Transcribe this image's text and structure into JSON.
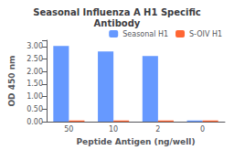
{
  "chart_data": {
    "type": "bar",
    "title": "Seasonal Influenza A H1 Specific\nAntibody",
    "xlabel": "Peptide Antigen (ng/well)",
    "ylabel": "OD 450 nm",
    "categories": [
      "50",
      "10",
      "2",
      "0"
    ],
    "series": [
      {
        "name": "Seasonal H1",
        "color": "#6699FF",
        "values": [
          3.02,
          2.8,
          2.62,
          0.05
        ]
      },
      {
        "name": "S-OIV H1",
        "color": "#FF6633",
        "values": [
          0.05,
          0.05,
          0.05,
          0.05
        ]
      }
    ],
    "ylim": [
      0,
      3.25
    ],
    "yticks": [
      {
        "value": 0,
        "label": "0.00"
      },
      {
        "value": 0.5,
        "label": "0.50"
      },
      {
        "value": 1,
        "label": "1.00"
      },
      {
        "value": 1.5,
        "label": "1.50"
      },
      {
        "value": 2,
        "label": "2.00"
      },
      {
        "value": 2.5,
        "label": "2.50"
      },
      {
        "value": 3,
        "label": "3.00"
      }
    ],
    "grid": false,
    "legend": "upper right"
  }
}
